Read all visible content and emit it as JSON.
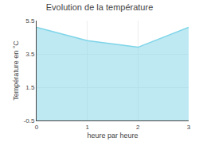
{
  "chart_data": {
    "type": "area",
    "title": "Evolution de la température",
    "xlabel": "heure par heure",
    "ylabel": "Température en °C",
    "x": [
      0,
      1,
      2,
      3
    ],
    "values": [
      5.1,
      4.3,
      3.9,
      5.1
    ],
    "color": "#7dd4e8",
    "xlim": [
      0,
      3
    ],
    "ylim": [
      -0.5,
      5.5
    ],
    "xticks": [
      0,
      1,
      2,
      3
    ],
    "yticks": [
      -0.5,
      1.5,
      3.5,
      5.5
    ],
    "grid": true
  }
}
